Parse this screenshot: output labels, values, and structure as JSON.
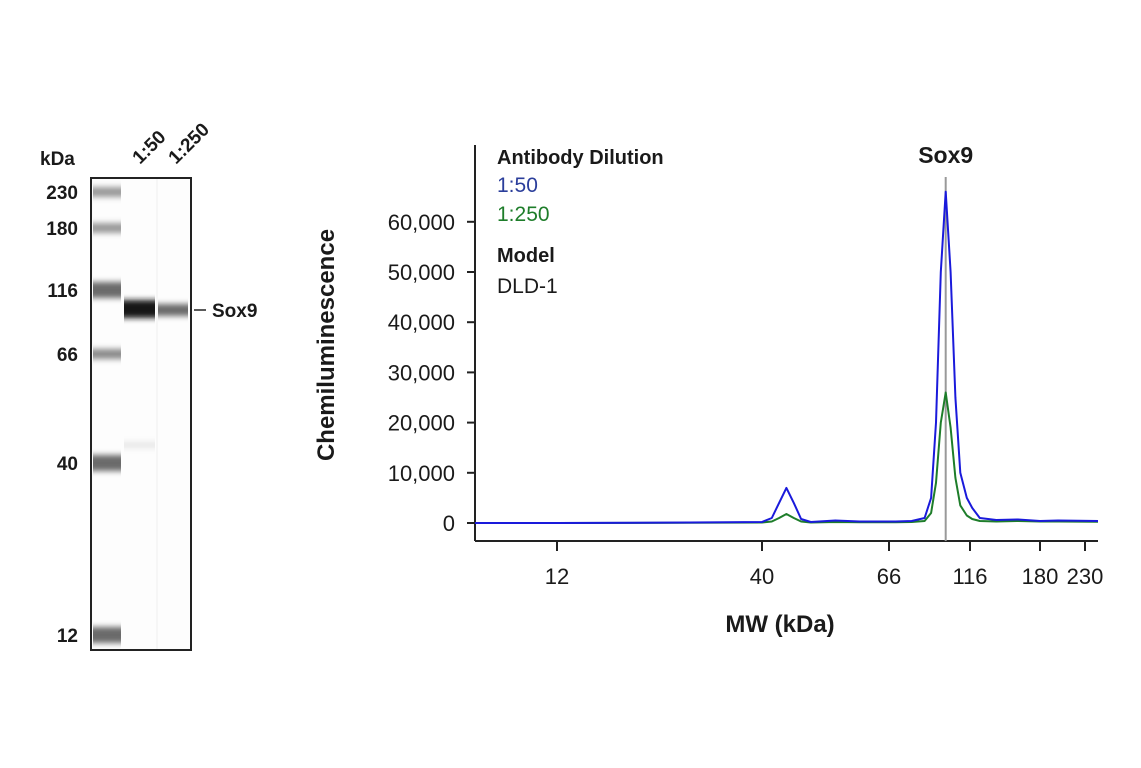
{
  "blot": {
    "unit_label": "kDa",
    "lane_labels": [
      "1:50",
      "1:250"
    ],
    "marker_labels": [
      "230",
      "180",
      "116",
      "66",
      "40",
      "12"
    ],
    "marker_values": [
      230,
      180,
      116,
      66,
      40,
      12
    ],
    "band_label": "Sox9"
  },
  "chart_data": {
    "type": "line",
    "title": "",
    "peak_label": "Sox9",
    "peak_mw": 101,
    "xlabel": "MW (kDa)",
    "ylabel": "Chemiluminescence",
    "x_ticks": [
      12,
      40,
      66,
      116,
      180,
      230
    ],
    "x_tick_labels": [
      "12",
      "40",
      "66",
      "116",
      "180",
      "230"
    ],
    "y_ticks": [
      0,
      10000,
      20000,
      30000,
      40000,
      50000,
      60000
    ],
    "y_tick_labels": [
      "0",
      "10,000",
      "20,000",
      "30,000",
      "40,000",
      "50,000",
      "60,000"
    ],
    "ylim": [
      -3000,
      75000
    ],
    "xlim": [
      8,
      250
    ],
    "grid": false,
    "legend": {
      "placement": "top-left",
      "title": "Antibody Dilution",
      "model_title": "Model",
      "model_value": "DLD-1"
    },
    "series": [
      {
        "name": "1:50",
        "color": "#1a1adb",
        "x": [
          8,
          12,
          30,
          40,
          42,
          43.5,
          45,
          46.5,
          48,
          50,
          55,
          60,
          70,
          80,
          88,
          92,
          95,
          98,
          101,
          104,
          107,
          110,
          114,
          118,
          125,
          140,
          160,
          180,
          200,
          250
        ],
        "y": [
          0,
          0,
          100,
          200,
          1000,
          4000,
          7000,
          4000,
          800,
          200,
          500,
          300,
          300,
          400,
          1000,
          5000,
          20000,
          50000,
          66000,
          50000,
          25000,
          10000,
          5000,
          3000,
          1000,
          600,
          700,
          400,
          500,
          400
        ]
      },
      {
        "name": "1:250",
        "color": "#1e7d2a",
        "x": [
          8,
          12,
          30,
          40,
          42,
          43.5,
          45,
          46.5,
          48,
          50,
          55,
          60,
          70,
          80,
          88,
          92,
          95,
          98,
          101,
          104,
          107,
          110,
          114,
          118,
          125,
          140,
          160,
          180,
          200,
          250
        ],
        "y": [
          0,
          0,
          50,
          100,
          300,
          1000,
          1800,
          1000,
          300,
          100,
          200,
          150,
          150,
          200,
          400,
          2000,
          8000,
          20000,
          26000,
          19000,
          9000,
          3500,
          1500,
          800,
          400,
          300,
          400,
          300,
          300,
          250
        ]
      }
    ]
  }
}
